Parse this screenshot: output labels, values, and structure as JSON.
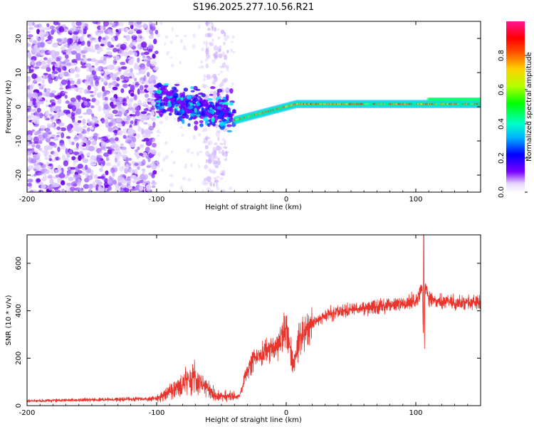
{
  "title": "S196.2025.277.10.56.R21",
  "chart_data": [
    {
      "type": "heatmap",
      "name": "spectrogram",
      "xlabel": "Height of straight line (km)",
      "ylabel": "Frequency (Hz)",
      "xlim": [
        -200,
        150
      ],
      "ylim": [
        -25,
        25
      ],
      "xticks": [
        -200,
        -100,
        0,
        100
      ],
      "xtick_labels": [
        "-200",
        "-100",
        "0",
        "100"
      ],
      "yticks": [
        -20,
        -10,
        0,
        10,
        20
      ],
      "ytick_labels": [
        "-20",
        "-10",
        "0",
        "10",
        "20"
      ],
      "colorbar": {
        "label": "Normalized spectral amplitude",
        "range": [
          0,
          1
        ],
        "ticks": [
          0.0,
          0.2,
          0.4,
          0.6,
          0.8
        ],
        "tick_labels": [
          "0.0",
          "0.2",
          "0.4",
          "0.6",
          "0.8"
        ]
      },
      "features": {
        "noise_region_x": [
          -200,
          -100
        ],
        "transition_region_x": [
          -100,
          -40
        ],
        "signal_band": {
          "x_start": -40,
          "x_end": 150,
          "center_freq_hz": 0.8,
          "width_hz": 2
        }
      }
    },
    {
      "type": "line",
      "name": "snr",
      "xlabel": "Height of straight line (km)",
      "ylabel": "SNR (10 * v/v)",
      "xlim": [
        -200,
        150
      ],
      "ylim": [
        0,
        720
      ],
      "xticks": [
        -200,
        -100,
        0,
        100
      ],
      "xtick_labels": [
        "-200",
        "-100",
        "0",
        "100"
      ],
      "yticks": [
        0,
        200,
        400,
        600
      ],
      "ytick_labels": [
        "0",
        "200",
        "400",
        "600"
      ],
      "color": "#e8352e",
      "series": [
        {
          "name": "SNR",
          "x": [
            -200,
            -180,
            -160,
            -140,
            -120,
            -100,
            -90,
            -80,
            -72,
            -65,
            -55,
            -45,
            -36,
            -30,
            -25,
            -20,
            -15,
            -10,
            -5,
            0,
            3,
            6,
            10,
            20,
            30,
            40,
            60,
            80,
            100,
            105,
            106,
            107,
            110,
            120,
            150
          ],
          "y": [
            20,
            22,
            24,
            25,
            27,
            30,
            55,
            90,
            120,
            90,
            45,
            40,
            40,
            150,
            190,
            210,
            230,
            240,
            270,
            330,
            240,
            170,
            280,
            345,
            380,
            400,
            410,
            425,
            440,
            500,
            240,
            510,
            450,
            440,
            430
          ]
        }
      ]
    }
  ]
}
